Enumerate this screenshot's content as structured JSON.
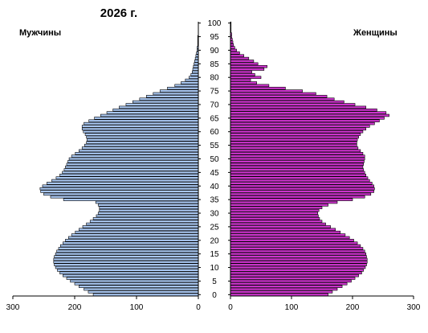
{
  "chart_data": {
    "type": "bar",
    "orientation": "horizontal",
    "title": "2026 г.",
    "colors": {
      "male": "#a8c6f0",
      "female": "#cc33cc",
      "stroke": "#000000"
    },
    "left_label": "Мужчины",
    "right_label": "Женщины",
    "age_ticks": [
      0,
      5,
      10,
      15,
      20,
      25,
      30,
      35,
      40,
      45,
      50,
      55,
      60,
      65,
      70,
      75,
      80,
      85,
      90,
      95,
      100
    ],
    "male_axis": {
      "xlim": [
        0,
        300
      ],
      "ticks": [
        300,
        200,
        100,
        0
      ]
    },
    "female_axis": {
      "xlim": [
        0,
        300
      ],
      "ticks": [
        0,
        100,
        200,
        300
      ]
    },
    "ages": [
      0,
      1,
      2,
      3,
      4,
      5,
      6,
      7,
      8,
      9,
      10,
      11,
      12,
      13,
      14,
      15,
      16,
      17,
      18,
      19,
      20,
      21,
      22,
      23,
      24,
      25,
      26,
      27,
      28,
      29,
      30,
      31,
      32,
      33,
      34,
      35,
      36,
      37,
      38,
      39,
      40,
      41,
      42,
      43,
      44,
      45,
      46,
      47,
      48,
      49,
      50,
      51,
      52,
      53,
      54,
      55,
      56,
      57,
      58,
      59,
      60,
      61,
      62,
      63,
      64,
      65,
      66,
      67,
      68,
      69,
      70,
      71,
      72,
      73,
      74,
      75,
      76,
      77,
      78,
      79,
      80,
      81,
      82,
      83,
      84,
      85,
      86,
      87,
      88,
      89,
      90,
      91,
      92,
      93,
      94,
      95,
      96,
      97,
      98,
      99,
      100
    ],
    "series": [
      {
        "name": "Мужчины",
        "values": [
          170,
          178,
          185,
          193,
          200,
          207,
          213,
          219,
          224,
          228,
          231,
          233,
          234,
          234,
          233,
          231,
          229,
          226,
          223,
          219,
          215,
          210,
          205,
          199,
          193,
          187,
          181,
          175,
          170,
          165,
          162,
          160,
          160,
          162,
          166,
          218,
          239,
          250,
          255,
          256,
          252,
          245,
          237,
          230,
          224,
          220,
          217,
          215,
          213,
          211,
          209,
          205,
          199,
          193,
          188,
          184,
          181,
          180,
          181,
          183,
          186,
          188,
          188,
          185,
          177,
          168,
          158,
          148,
          138,
          128,
          117,
          106,
          95,
          84,
          73,
          62,
          50,
          38,
          28,
          21,
          15,
          12,
          10,
          9,
          8,
          7,
          6,
          5,
          4,
          3,
          2,
          2,
          1,
          1,
          1,
          1,
          0,
          0,
          0,
          0,
          0
        ]
      },
      {
        "name": "Женщины",
        "values": [
          160,
          167,
          175,
          183,
          191,
          198,
          204,
          210,
          215,
          218,
          221,
          223,
          224,
          224,
          223,
          222,
          220,
          217,
          213,
          208,
          202,
          195,
          188,
          180,
          172,
          164,
          156,
          150,
          146,
          144,
          143,
          145,
          150,
          160,
          175,
          200,
          220,
          230,
          235,
          236,
          235,
          232,
          228,
          225,
          222,
          220,
          218,
          217,
          218,
          219,
          220,
          220,
          217,
          213,
          209,
          207,
          207,
          208,
          210,
          213,
          217,
          222,
          228,
          236,
          244,
          252,
          260,
          255,
          240,
          222,
          204,
          186,
          170,
          158,
          140,
          118,
          90,
          63,
          43,
          33,
          50,
          40,
          35,
          55,
          60,
          45,
          38,
          30,
          22,
          15,
          10,
          7,
          5,
          4,
          3,
          2,
          2,
          1,
          1,
          1,
          1
        ]
      }
    ]
  }
}
